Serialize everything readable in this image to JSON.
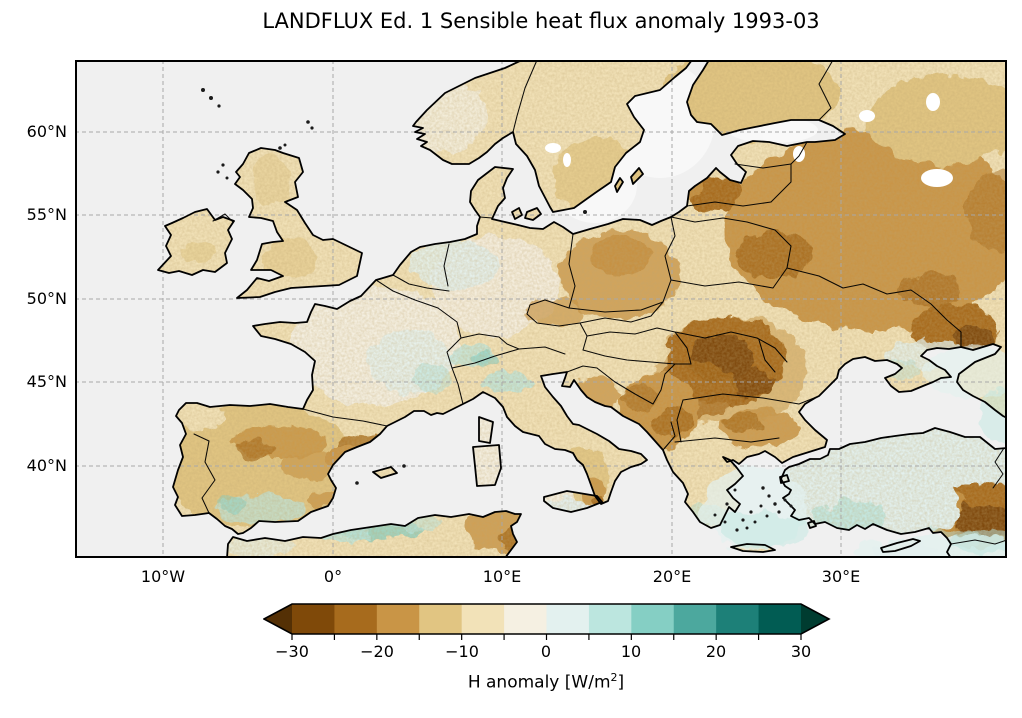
{
  "title": "LANDFLUX Ed. 1 Sensible heat flux anomaly 1993-03",
  "x_axis": {
    "tick_labels": [
      "10°W",
      "0°",
      "10°E",
      "20°E",
      "30°E"
    ]
  },
  "y_axis": {
    "tick_labels": [
      "60°N",
      "55°N",
      "50°N",
      "45°N",
      "40°N"
    ]
  },
  "colorbar": {
    "label": "H anomaly [W/m²]",
    "label_prefix": "H anomaly [W/m",
    "label_sup": "2",
    "label_suffix": "]",
    "tick_labels": [
      "−30",
      "−20",
      "−10",
      "0",
      "10",
      "20",
      "30"
    ],
    "levels": [
      -30,
      -25,
      -20,
      -15,
      -10,
      -5,
      0,
      5,
      10,
      15,
      20,
      25,
      30
    ],
    "segment_colors": [
      "#7F4909",
      "#A76B1D",
      "#C99546",
      "#E1C582",
      "#F2E2B8",
      "#F5F0E2",
      "#E3F1EF",
      "#BCE6DF",
      "#85CFC4",
      "#4CA89E",
      "#1D8078",
      "#015C53"
    ],
    "under_color": "#543005",
    "over_color": "#003C30",
    "extend": "both",
    "colormap_name": "BrBG"
  },
  "map": {
    "projection": "PlateCarree",
    "extent": {
      "lon_min": -15.2,
      "lon_max": 39.8,
      "lat_min": 34.5,
      "lat_max": 64.3
    },
    "gridline_lons_deg": [
      -10,
      0,
      10,
      20,
      30
    ],
    "gridline_lats_deg": [
      60,
      55,
      50,
      45,
      40
    ],
    "ocean_color": "#f0f0f0",
    "land_base_color": "#f2e2b8",
    "coastline_color": "#000000"
  },
  "chart_data": {
    "type": "heatmap",
    "title": "LANDFLUX Ed. 1 Sensible heat flux anomaly 1993-03",
    "variable": "Sensible heat flux anomaly (H)",
    "units": "W/m²",
    "period": "1993-03",
    "dataset": "LANDFLUX Ed. 1",
    "colorbar_label": "H anomaly [W/m²]",
    "levels": [
      -30,
      -25,
      -20,
      -15,
      -10,
      -5,
      0,
      5,
      10,
      15,
      20,
      25,
      30
    ],
    "colormap": "BrBG",
    "extend": "both",
    "xlabel_ticks": [
      "10°W",
      "0°",
      "10°E",
      "20°E",
      "30°E"
    ],
    "ylabel_ticks": [
      "60°N",
      "55°N",
      "50°N",
      "45°N",
      "40°N"
    ],
    "regions": [
      {
        "region": "British Isles",
        "approx_anomaly_wm2": -5
      },
      {
        "region": "France (west/center)",
        "approx_anomaly_wm2": 0
      },
      {
        "region": "Eastern France / Alps",
        "approx_anomaly_wm2": 6
      },
      {
        "region": "Northern & central Spain",
        "approx_anomaly_wm2": -14
      },
      {
        "region": "Northeast Spain (Ebro)",
        "approx_anomaly_wm2": -20
      },
      {
        "region": "Southern Spain (Andalusia)",
        "approx_anomaly_wm2": 6
      },
      {
        "region": "Southern Scandinavia",
        "approx_anomaly_wm2": -5
      },
      {
        "region": "Finland / NW Russia",
        "approx_anomaly_wm2": -12
      },
      {
        "region": "Germany / Benelux",
        "approx_anomaly_wm2": 2
      },
      {
        "region": "Poland / Baltic states / Belarus",
        "approx_anomaly_wm2": -15
      },
      {
        "region": "Western Russia",
        "approx_anomaly_wm2": -14
      },
      {
        "region": "Ukraine (east)",
        "approx_anomaly_wm2": -18
      },
      {
        "region": "Romania / Carpathians",
        "approx_anomaly_wm2": -27
      },
      {
        "region": "Balkans (Serbia/Bulgaria)",
        "approx_anomaly_wm2": -17
      },
      {
        "region": "Po Valley (N Italy)",
        "approx_anomaly_wm2": 4
      },
      {
        "region": "Southern Italy",
        "approx_anomaly_wm2": -10
      },
      {
        "region": "Greece",
        "approx_anomaly_wm2": 2
      },
      {
        "region": "Central Turkey",
        "approx_anomaly_wm2": 4
      },
      {
        "region": "Eastern Turkey",
        "approx_anomaly_wm2": -28
      },
      {
        "region": "Algerian coast",
        "approx_anomaly_wm2": 10
      },
      {
        "region": "Tunisia",
        "approx_anomaly_wm2": -12
      }
    ]
  }
}
